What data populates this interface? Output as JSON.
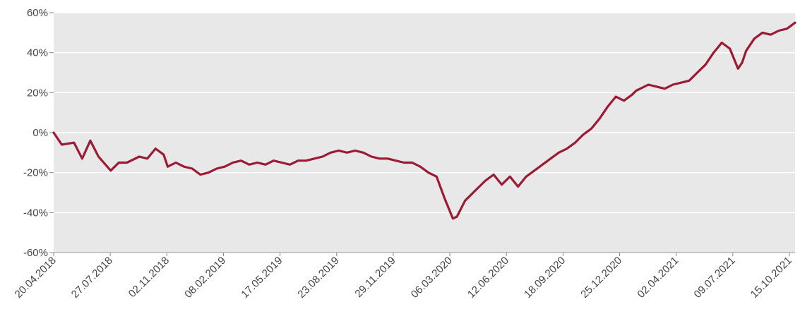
{
  "chart_data": {
    "type": "line",
    "title": "",
    "xlabel": "",
    "ylabel": "",
    "ylim": [
      -60,
      60
    ],
    "y_ticks": [
      60,
      40,
      20,
      0,
      -20,
      -40,
      -60
    ],
    "y_tick_labels": [
      "60%",
      "40%",
      "20%",
      "0%",
      "-20%",
      "-40%",
      "-60%"
    ],
    "x_tick_labels": [
      "20.04.2018",
      "27.07.2018",
      "02.11.2018",
      "08.02.2019",
      "17.05.2019",
      "23.08.2019",
      "29.11.2019",
      "06.03.2020",
      "12.06.2020",
      "18.09.2020",
      "25.12.2020",
      "02.04.2021",
      "09.07.2021",
      "15.10.2021"
    ],
    "grid": true,
    "colors": {
      "background": "#e8e8e8",
      "grid": "#ffffff",
      "line": "#9b1b34"
    },
    "series": [
      {
        "x": [
          "2018-04-20",
          "2018-05-04",
          "2018-05-25",
          "2018-06-08",
          "2018-06-22",
          "2018-07-06",
          "2018-07-27",
          "2018-08-10",
          "2018-08-24",
          "2018-09-14",
          "2018-09-28",
          "2018-10-12",
          "2018-10-26",
          "2018-11-02",
          "2018-11-16",
          "2018-11-30",
          "2018-12-14",
          "2018-12-28",
          "2019-01-11",
          "2019-01-25",
          "2019-02-08",
          "2019-02-22",
          "2019-03-08",
          "2019-03-22",
          "2019-04-05",
          "2019-04-19",
          "2019-05-03",
          "2019-05-17",
          "2019-05-31",
          "2019-06-14",
          "2019-06-28",
          "2019-07-12",
          "2019-07-26",
          "2019-08-09",
          "2019-08-23",
          "2019-09-06",
          "2019-09-20",
          "2019-10-04",
          "2019-10-18",
          "2019-11-01",
          "2019-11-15",
          "2019-11-29",
          "2019-12-13",
          "2019-12-27",
          "2020-01-10",
          "2020-01-24",
          "2020-02-07",
          "2020-02-21",
          "2020-03-06",
          "2020-03-13",
          "2020-03-20",
          "2020-03-27",
          "2020-04-03",
          "2020-04-17",
          "2020-05-01",
          "2020-05-15",
          "2020-05-29",
          "2020-06-12",
          "2020-06-26",
          "2020-07-10",
          "2020-07-24",
          "2020-08-07",
          "2020-08-21",
          "2020-09-04",
          "2020-09-18",
          "2020-10-02",
          "2020-10-16",
          "2020-10-30",
          "2020-11-13",
          "2020-11-27",
          "2020-12-11",
          "2020-12-25",
          "2021-01-08",
          "2021-01-15",
          "2021-01-22",
          "2021-02-05",
          "2021-02-19",
          "2021-03-05",
          "2021-03-19",
          "2021-04-02",
          "2021-04-16",
          "2021-04-30",
          "2021-05-14",
          "2021-05-28",
          "2021-06-11",
          "2021-06-25",
          "2021-07-09",
          "2021-07-16",
          "2021-07-23",
          "2021-08-06",
          "2021-08-20",
          "2021-09-03",
          "2021-09-17",
          "2021-10-01",
          "2021-10-15"
        ],
        "values": [
          0,
          -6,
          -5,
          -13,
          -4,
          -12,
          -19,
          -15,
          -15,
          -12,
          -13,
          -8,
          -11,
          -17,
          -15,
          -17,
          -18,
          -21,
          -20,
          -18,
          -17,
          -15,
          -14,
          -16,
          -15,
          -16,
          -14,
          -15,
          -16,
          -14,
          -14,
          -13,
          -12,
          -10,
          -9,
          -10,
          -9,
          -10,
          -12,
          -13,
          -13,
          -14,
          -15,
          -15,
          -17,
          -20,
          -22,
          -33,
          -43,
          -42,
          -38,
          -34,
          -32,
          -28,
          -24,
          -21,
          -26,
          -22,
          -27,
          -22,
          -19,
          -16,
          -13,
          -10,
          -8,
          -5,
          -1,
          2,
          7,
          13,
          18,
          16,
          19,
          21,
          22,
          24,
          23,
          22,
          24,
          25,
          26,
          30,
          34,
          40,
          45,
          42,
          32,
          35,
          41,
          47,
          50,
          49,
          51,
          52,
          55
        ]
      }
    ]
  }
}
